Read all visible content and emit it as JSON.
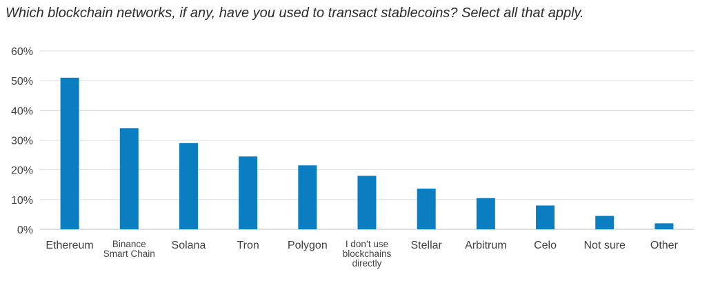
{
  "chart_data": {
    "type": "bar",
    "title": "Which blockchain networks, if any, have you used to transact stablecoins? Select all that apply.",
    "xlabel": "",
    "ylabel": "",
    "ylim": [
      0,
      60
    ],
    "yticks": [
      "0%",
      "10%",
      "20%",
      "30%",
      "40%",
      "50%",
      "60%"
    ],
    "grid": true,
    "legend": "none",
    "bar_color": "#0b7dc1",
    "grid_color": "#d9d9d9",
    "categories": [
      "Ethereum",
      "Binance Smart Chain",
      "Solana",
      "Tron",
      "Polygon",
      "I don’t use blockchains directly",
      "Stellar",
      "Arbitrum",
      "Celo",
      "Not sure",
      "Other"
    ],
    "category_lines": [
      [
        "Ethereum"
      ],
      [
        "Binance",
        "Smart Chain"
      ],
      [
        "Solana"
      ],
      [
        "Tron"
      ],
      [
        "Polygon"
      ],
      [
        "I don’t use",
        "blockchains",
        "directly"
      ],
      [
        "Stellar"
      ],
      [
        "Arbitrum"
      ],
      [
        "Celo"
      ],
      [
        "Not sure"
      ],
      [
        "Other"
      ]
    ],
    "values": [
      51,
      34,
      29,
      24.5,
      21.5,
      18,
      13.7,
      10.5,
      8,
      4.5,
      2
    ]
  }
}
